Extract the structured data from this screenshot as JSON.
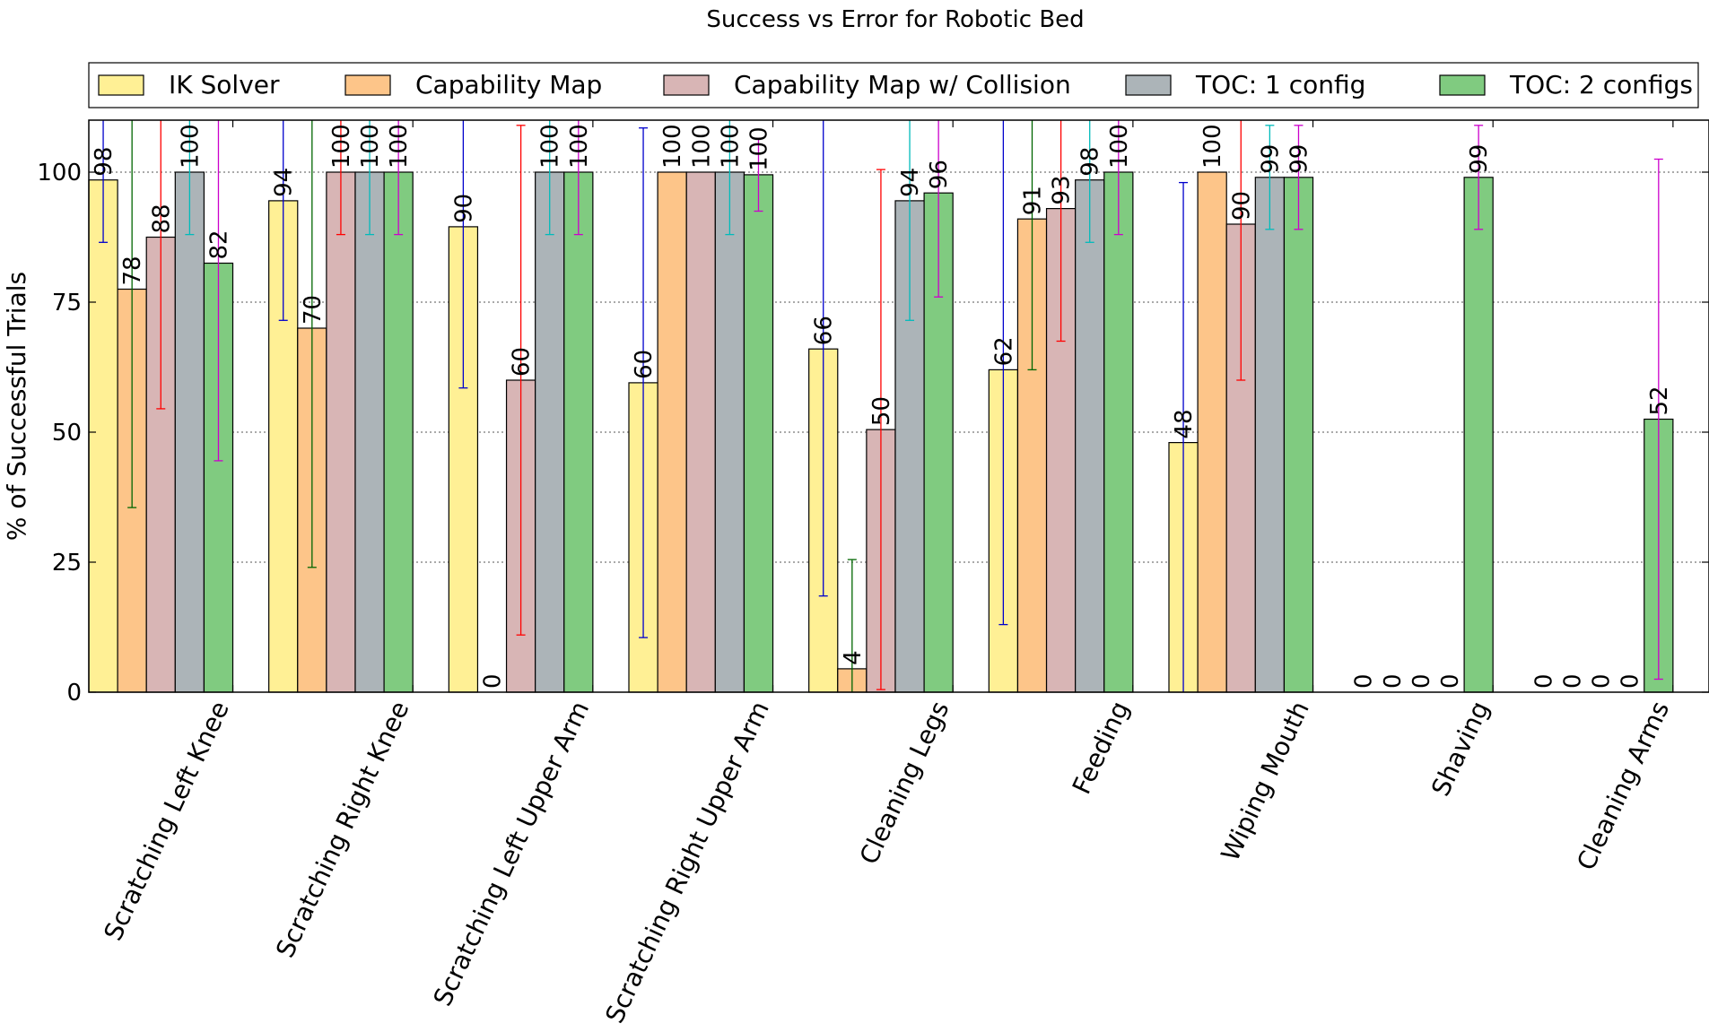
{
  "chart_data": {
    "type": "bar",
    "title": "Success vs Error for Robotic Bed",
    "xlabel": "",
    "ylabel": "% of Successful Trials",
    "ylim": [
      0,
      110
    ],
    "yticks": [
      "0",
      "25",
      "50",
      "75",
      "100"
    ],
    "grid": "horizontal dotted",
    "legend_position": "top",
    "categories": [
      "Scratching Left Knee",
      "Scratching Right Knee",
      "Scratching Left Upper Arm",
      "Scratching Right Upper Arm",
      "Cleaning Legs",
      "Feeding",
      "Wiping Mouth",
      "Shaving",
      "Cleaning Arms"
    ],
    "series": [
      {
        "name": "IK Solver",
        "color": "#fff095",
        "error_color": "#0000cc",
        "values": [
          98.5,
          94.5,
          89.5,
          59.5,
          66,
          62,
          48,
          0,
          0
        ],
        "labels": [
          "98",
          "94",
          "90",
          "60",
          "66",
          "62",
          "48",
          "0",
          "0"
        ],
        "errors": [
          12,
          23,
          31,
          49,
          47.5,
          49,
          50,
          null,
          null
        ]
      },
      {
        "name": "Capability Map",
        "color": "#fdc589",
        "error_color": "#006600",
        "values": [
          77.5,
          70,
          0,
          100,
          4.5,
          91,
          100,
          0,
          0
        ],
        "labels": [
          "78",
          "70",
          "0",
          "100",
          "4",
          "91",
          "100",
          "0",
          "0"
        ],
        "errors": [
          42,
          46,
          null,
          null,
          21,
          29,
          null,
          null,
          null
        ]
      },
      {
        "name": "Capability Map w/ Collision",
        "color": "#d8b5b5",
        "error_color": "#ff0000",
        "values": [
          87.5,
          100,
          60,
          100,
          50.5,
          93,
          90,
          0,
          0
        ],
        "labels": [
          "88",
          "100",
          "60",
          "100",
          "50",
          "93",
          "90",
          "0",
          "0"
        ],
        "errors": [
          33,
          12,
          49,
          null,
          50,
          25.5,
          30,
          null,
          null
        ]
      },
      {
        "name": "TOC: 1 config",
        "color": "#acb4b8",
        "error_color": "#00bbbb",
        "values": [
          100,
          100,
          100,
          100,
          94.5,
          98.5,
          99,
          0,
          0
        ],
        "labels": [
          "100",
          "100",
          "100",
          "100",
          "94",
          "98",
          "99",
          "0",
          "0"
        ],
        "errors": [
          12,
          12,
          12,
          12,
          23,
          12,
          10,
          null,
          null
        ]
      },
      {
        "name": "TOC: 2 configs",
        "color": "#80cb80",
        "error_color": "#cc00cc",
        "values": [
          82.5,
          100,
          100,
          99.5,
          96,
          100,
          99,
          99,
          52.5
        ],
        "labels": [
          "82",
          "100",
          "100",
          "100",
          "96",
          "100",
          "99",
          "99",
          "52"
        ],
        "errors": [
          38,
          12,
          12,
          7,
          20,
          12,
          10,
          10,
          50
        ]
      }
    ]
  }
}
